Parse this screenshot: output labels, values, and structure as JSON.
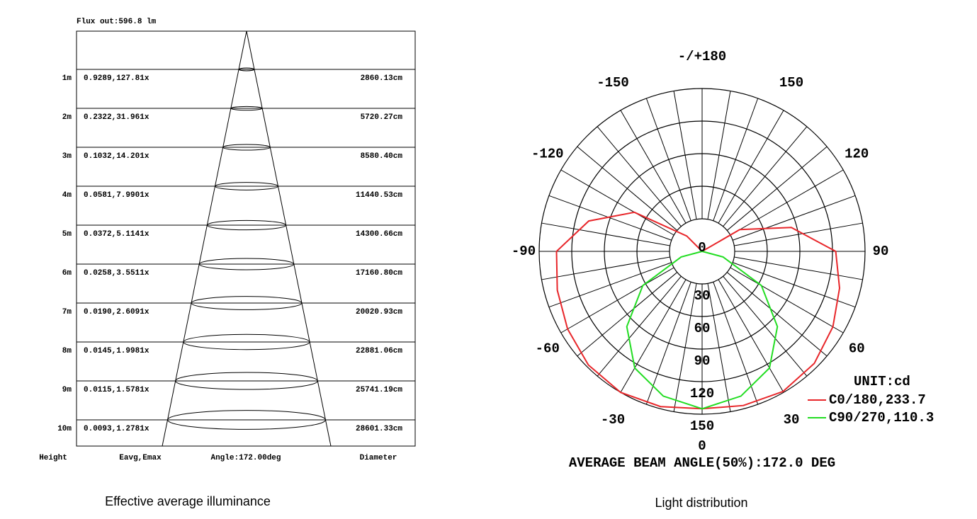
{
  "chart_data": [
    {
      "type": "cone",
      "title": "Flux out:596.8 lm",
      "rows": [
        [
          "1m",
          "0.9289,127.81x",
          "2860.13cm"
        ],
        [
          "2m",
          "0.2322,31.961x",
          "5720.27cm"
        ],
        [
          "3m",
          "0.1032,14.201x",
          "8580.40cm"
        ],
        [
          "4m",
          "0.0581,7.9901x",
          "11440.53cm"
        ],
        [
          "5m",
          "0.0372,5.1141x",
          "14300.66cm"
        ],
        [
          "6m",
          "0.0258,3.5511x",
          "17160.80cm"
        ],
        [
          "7m",
          "0.0190,2.6091x",
          "20020.93cm"
        ],
        [
          "8m",
          "0.0145,1.9981x",
          "22881.06cm"
        ],
        [
          "9m",
          "0.0115,1.5781x",
          "25741.19cm"
        ],
        [
          "10m",
          "0.0093,1.2781x",
          "28601.33cm"
        ]
      ],
      "footer": [
        "Height",
        "Eavg,Emax",
        "Angle:172.00deg",
        "Diameter"
      ],
      "caption": "Effective average illuminance"
    },
    {
      "type": "polar",
      "title": "AVERAGE BEAM ANGLE(50%):172.0 DEG",
      "unit_label": "UNIT:cd",
      "caption": "Light distribution",
      "rlim": [
        0,
        150
      ],
      "rticks": [
        0,
        30,
        60,
        90,
        120,
        150
      ],
      "angle_ticks": [
        0,
        30,
        60,
        90,
        120,
        150,
        {
          "value": 180,
          "label": "-/+180"
        },
        -150,
        -120,
        -90,
        -60,
        -30
      ],
      "x": [
        -180,
        -165,
        -150,
        -135,
        -120,
        -105,
        -90,
        -75,
        -60,
        -45,
        -30,
        -15,
        0,
        15,
        30,
        45,
        60,
        75,
        90,
        105,
        120,
        135,
        150,
        165,
        180
      ],
      "series": [
        {
          "name": "C0/180,233.7",
          "color": "#e8262a",
          "values": [
            0,
            0,
            0,
            20,
            72,
            108,
            134,
            138,
            143,
            148,
            150,
            148,
            145,
            147,
            149,
            146,
            139,
            131,
            123,
            85,
            40,
            0,
            0,
            0,
            0
          ]
        },
        {
          "name": "C90/270,110.3",
          "color": "#22dd22",
          "values": [
            0,
            0,
            0,
            0,
            0,
            0,
            0,
            20,
            63,
            98,
            124,
            138,
            145,
            138,
            124,
            98,
            63,
            20,
            0,
            0,
            0,
            0,
            0,
            0,
            0
          ]
        }
      ]
    }
  ]
}
